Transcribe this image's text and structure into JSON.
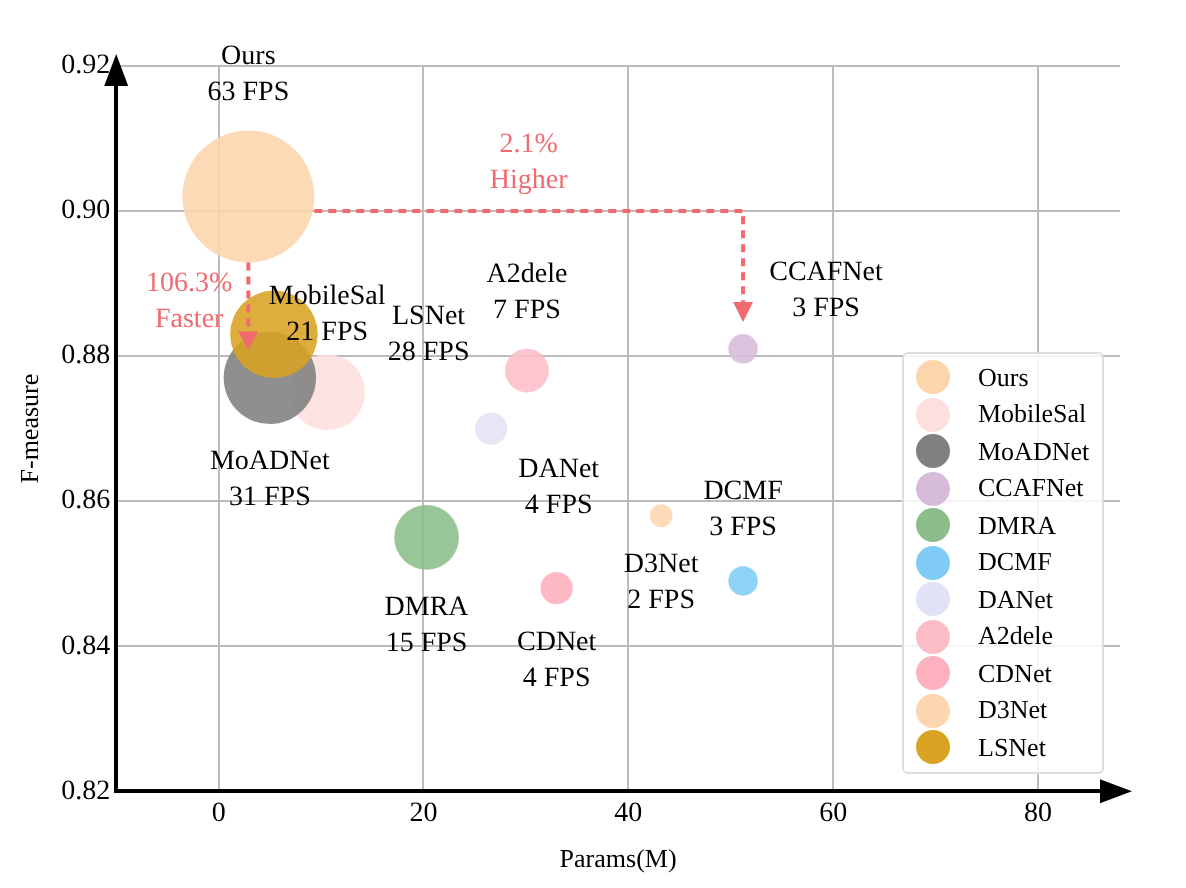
{
  "chart_data": {
    "type": "bubble",
    "xlabel": "Params(M)",
    "ylabel": "F-measure",
    "xlim": [
      -10,
      88
    ],
    "xticks": [
      0,
      20,
      40,
      60,
      80
    ],
    "ylim": [
      0.82,
      0.92
    ],
    "yticks": [
      0.82,
      0.84,
      0.86,
      0.88,
      {
        "value": 0.9,
        "label": "0.90"
      },
      0.92
    ],
    "grid": true,
    "legend": "bottom right",
    "marker": "circle",
    "series": [
      {
        "name": "Ours",
        "color": "#fdd5ac",
        "x": [
          2.9
        ],
        "values": [
          0.902
        ],
        "sizes": [
          1
        ]
      },
      {
        "name": "MobileSal",
        "color": "#fde0de",
        "x": [
          10.6
        ],
        "values": [
          0.875
        ],
        "sizes": [
          0.33
        ]
      },
      {
        "name": "MoADNet",
        "color": "#808080",
        "x": [
          5.0
        ],
        "values": [
          0.877
        ],
        "sizes": [
          0.49
        ]
      },
      {
        "name": "CCAFNet",
        "color": "#d7bcd9",
        "x": [
          51.2
        ],
        "values": [
          0.881
        ],
        "sizes": [
          0.05
        ]
      },
      {
        "name": "DMRA",
        "color": "#8bbe8a",
        "x": [
          20.3
        ],
        "values": [
          0.855
        ],
        "sizes": [
          0.24
        ]
      },
      {
        "name": "DCMF",
        "color": "#80ccf7",
        "x": [
          51.2
        ],
        "values": [
          0.849
        ],
        "sizes": [
          0.05
        ]
      },
      {
        "name": "DANet",
        "color": "#e2e2f6",
        "x": [
          26.6
        ],
        "values": [
          0.87
        ],
        "sizes": [
          0.06
        ]
      },
      {
        "name": "A2dele",
        "color": "#fdbdc6",
        "x": [
          30.1
        ],
        "values": [
          0.878
        ],
        "sizes": [
          0.11
        ]
      },
      {
        "name": "CDNet",
        "color": "#fdb0bd",
        "x": [
          33.0
        ],
        "values": [
          0.848
        ],
        "sizes": [
          0.06
        ]
      },
      {
        "name": "D3Net",
        "color": "#fdd5ae",
        "x": [
          43.2
        ],
        "values": [
          0.858
        ],
        "sizes": [
          0.03
        ]
      },
      {
        "name": "LSNet",
        "color": "#d8a322",
        "x": [
          5.4
        ],
        "values": [
          0.883
        ],
        "sizes": [
          0.44
        ]
      }
    ],
    "annotations": [
      "Ours\n63 FPS",
      "MobileSal\n21 FPS",
      "MoADNet\n31 FPS",
      "CCAFNet\n3 FPS",
      "DMRA\n15 FPS",
      "DCMF\n3 FPS",
      "DANet\n4 FPS",
      "A2dele\n7 FPS",
      "CDNet\n4 FPS",
      "D3Net\n2 FPS",
      "LSNet\n28 FPS",
      "2.1%\nHigher",
      {
        "text": "106.3%\nFaster",
        "x": 2.9,
        "y": 0.882
      }
    ]
  }
}
